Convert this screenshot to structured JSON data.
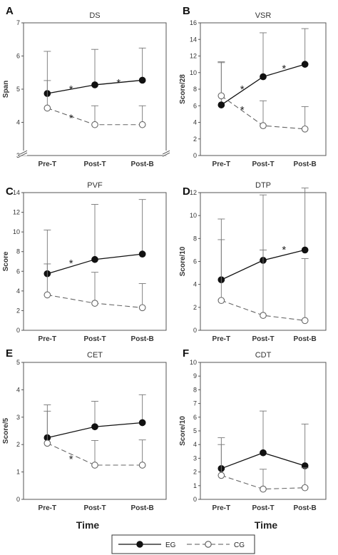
{
  "legend": {
    "eg_label": "EG",
    "cg_label": "CG"
  },
  "x_axis_title": "Time",
  "chart_data": [
    {
      "type": "line",
      "letter": "A",
      "title": "DS",
      "ylabel": "Span",
      "categories": [
        "Pre-T",
        "Post-T",
        "Post-B"
      ],
      "ylim": [
        3,
        7
      ],
      "ticks": [
        3,
        4,
        5,
        6,
        7
      ],
      "axis_break": true,
      "series": [
        {
          "name": "EG",
          "values": [
            4.87,
            5.13,
            5.27
          ],
          "error": [
            1.27,
            1.07,
            0.97
          ]
        },
        {
          "name": "CG",
          "values": [
            4.43,
            3.93,
            3.93
          ],
          "error": [
            0.83,
            0.57,
            0.57
          ]
        }
      ],
      "annotations": [
        {
          "text": "*",
          "x": 0.5,
          "y": 5.02
        },
        {
          "text": "*",
          "x": 1.5,
          "y": 5.22
        },
        {
          "text": "*",
          "x": 0.5,
          "y": 4.15
        }
      ]
    },
    {
      "type": "line",
      "letter": "B",
      "title": "VSR",
      "ylabel": "Score/28",
      "categories": [
        "Pre-T",
        "Post-T",
        "Post-B"
      ],
      "ylim": [
        0,
        16
      ],
      "ticks": [
        0,
        2,
        4,
        6,
        8,
        10,
        12,
        14,
        16
      ],
      "axis_break": false,
      "series": [
        {
          "name": "EG",
          "values": [
            6.1,
            9.5,
            11.0
          ],
          "error": [
            5.2,
            5.3,
            4.3
          ]
        },
        {
          "name": "CG",
          "values": [
            7.2,
            3.6,
            3.2
          ],
          "error": [
            4.0,
            3.0,
            2.7
          ]
        }
      ],
      "annotations": [
        {
          "text": "*",
          "x": 0.5,
          "y": 8.1
        },
        {
          "text": "*",
          "x": 1.5,
          "y": 10.6
        },
        {
          "text": "*",
          "x": 0.5,
          "y": 5.6
        }
      ]
    },
    {
      "type": "line",
      "letter": "C",
      "title": "PVF",
      "ylabel": "Score",
      "categories": [
        "Pre-T",
        "Post-T",
        "Post-B"
      ],
      "ylim": [
        0,
        14
      ],
      "ticks": [
        0,
        2,
        4,
        6,
        8,
        10,
        12,
        14
      ],
      "axis_break": false,
      "series": [
        {
          "name": "EG",
          "values": [
            5.75,
            7.2,
            7.75
          ],
          "error": [
            4.45,
            5.6,
            5.55
          ]
        },
        {
          "name": "CG",
          "values": [
            3.6,
            2.75,
            2.3
          ],
          "error": [
            3.15,
            3.15,
            2.45
          ]
        }
      ],
      "annotations": [
        {
          "text": "*",
          "x": 0.5,
          "y": 6.9
        }
      ]
    },
    {
      "type": "line",
      "letter": "D",
      "title": "DTP",
      "ylabel": "Score/10",
      "categories": [
        "Pre-T",
        "Post-T",
        "Post-B"
      ],
      "ylim": [
        0,
        12
      ],
      "ticks": [
        0,
        2,
        4,
        6,
        8,
        10,
        12
      ],
      "axis_break": false,
      "series": [
        {
          "name": "EG",
          "values": [
            4.4,
            6.1,
            7.0
          ],
          "error": [
            5.3,
            5.7,
            5.4
          ]
        },
        {
          "name": "CG",
          "values": [
            2.6,
            1.3,
            0.85
          ],
          "error": [
            5.3,
            5.7,
            5.4
          ]
        }
      ],
      "annotations": [
        {
          "text": "*",
          "x": 1.5,
          "y": 7.1
        }
      ]
    },
    {
      "type": "line",
      "letter": "E",
      "title": "CET",
      "ylabel": "Score/5",
      "categories": [
        "Pre-T",
        "Post-T",
        "Post-B"
      ],
      "ylim": [
        0,
        5
      ],
      "ticks": [
        0,
        1,
        2,
        3,
        4,
        5
      ],
      "axis_break": false,
      "series": [
        {
          "name": "EG",
          "values": [
            2.25,
            2.65,
            2.8
          ],
          "error": [
            1.2,
            0.93,
            1.02
          ]
        },
        {
          "name": "CG",
          "values": [
            2.05,
            1.25,
            1.25
          ],
          "error": [
            1.17,
            0.9,
            0.92
          ]
        }
      ],
      "annotations": [
        {
          "text": "*",
          "x": 0.5,
          "y": 1.5
        }
      ]
    },
    {
      "type": "line",
      "letter": "F",
      "title": "CDT",
      "ylabel": "Score/10",
      "categories": [
        "Pre-T",
        "Post-T",
        "Post-B"
      ],
      "ylim": [
        0,
        10
      ],
      "ticks": [
        0,
        1,
        2,
        3,
        4,
        5,
        6,
        7,
        8,
        9,
        10
      ],
      "axis_break": false,
      "series": [
        {
          "name": "EG",
          "values": [
            2.25,
            3.4,
            2.45
          ],
          "error": [
            2.25,
            3.05,
            3.05
          ]
        },
        {
          "name": "CG",
          "values": [
            1.75,
            0.75,
            0.85
          ],
          "error": [
            2.25,
            1.45,
            1.45
          ]
        }
      ],
      "annotations": []
    }
  ]
}
